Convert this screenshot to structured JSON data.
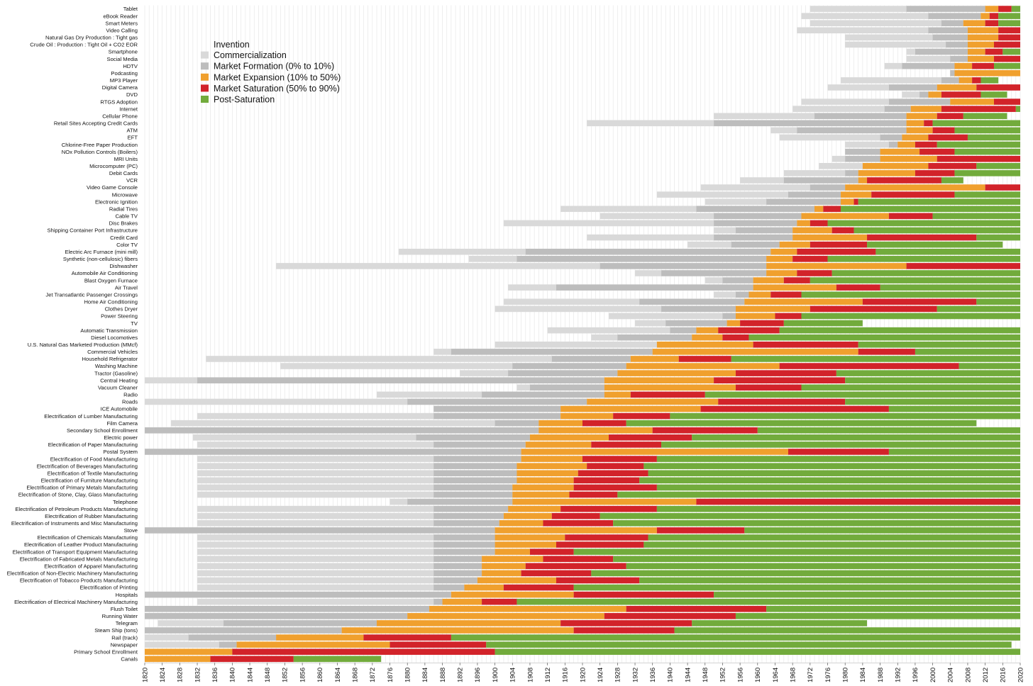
{
  "chart_data": {
    "type": "bar",
    "subtype": "stacked-horizontal-timeline",
    "title": "",
    "xlabel": "",
    "ylabel": "",
    "xlim": [
      1820,
      2020
    ],
    "xticks": [
      1820,
      1824,
      1828,
      1832,
      1836,
      1840,
      1844,
      1848,
      1852,
      1856,
      1860,
      1864,
      1868,
      1872,
      1876,
      1880,
      1884,
      1888,
      1892,
      1896,
      1900,
      1904,
      1908,
      1912,
      1916,
      1920,
      1924,
      1928,
      1932,
      1936,
      1940,
      1944,
      1948,
      1952,
      1956,
      1960,
      1964,
      1968,
      1972,
      1976,
      1980,
      1984,
      1988,
      1992,
      1996,
      2000,
      2004,
      2008,
      2012,
      2016,
      2020
    ],
    "grid": true,
    "legend_position": "top-left",
    "legend_title": "Invention",
    "phases": [
      {
        "key": "commercialization",
        "name": "Commercialization",
        "color": "#d9d9d9"
      },
      {
        "key": "formation",
        "name": "Market Formation (0% to 10%)",
        "color": "#bdbdbd"
      },
      {
        "key": "expansion",
        "name": "Market Expansion (10% to 50%)",
        "color": "#f0a02e"
      },
      {
        "key": "saturation",
        "name": "Market Saturation (50% to 90%)",
        "color": "#d2232a"
      },
      {
        "key": "post",
        "name": "Post-Saturation",
        "color": "#72ab3c"
      }
    ],
    "series_note": "each row: start year of Commercialization, Market Formation, Market Expansion, Market Saturation, Post-Saturation, and end year",
    "rows": [
      {
        "name": "Tablet",
        "years": [
          1972,
          1994,
          2012,
          2015,
          2018,
          2020
        ]
      },
      {
        "name": "eBook Reader",
        "years": [
          1970,
          1999,
          2011,
          2013,
          2015,
          2020
        ]
      },
      {
        "name": "Smart Meters",
        "years": [
          1972,
          2002,
          2007,
          2012,
          2015,
          2020
        ]
      },
      {
        "name": "Video Calling",
        "years": [
          1969,
          1999,
          2008,
          2015,
          null,
          2020
        ]
      },
      {
        "name": "Natural Gas Dry Production : Tight gas",
        "years": [
          1980,
          2000,
          2008,
          2015,
          null,
          2020
        ]
      },
      {
        "name": "Crude Oil : Production : Tight Oil + CO2 EOR",
        "years": [
          1980,
          2003,
          2008,
          2014,
          null,
          2020
        ]
      },
      {
        "name": "Smartphone",
        "years": [
          1994,
          1996,
          2008,
          2012,
          2016,
          2020
        ]
      },
      {
        "name": "Social Media",
        "years": [
          1994,
          2004,
          2008,
          2014,
          2020,
          2020
        ]
      },
      {
        "name": "HDTV",
        "years": [
          1989,
          1993,
          2005,
          2009,
          2014,
          2020
        ]
      },
      {
        "name": "Podcasting",
        "years": [
          2004,
          2004,
          2005,
          2020,
          null,
          2020
        ]
      },
      {
        "name": "MP3 Player",
        "years": [
          1979,
          2002,
          2006,
          2009,
          2011,
          2015
        ]
      },
      {
        "name": "Digital Camera",
        "years": [
          1976,
          1990,
          2001,
          2010,
          null,
          2020
        ]
      },
      {
        "name": "DVD",
        "years": [
          1993,
          1997,
          1999,
          2002,
          2011,
          2017
        ]
      },
      {
        "name": "RTGS Adoption",
        "years": [
          1970,
          1990,
          2004,
          2014,
          null,
          2020
        ]
      },
      {
        "name": "Internet",
        "years": [
          1968,
          1989,
          1995,
          2002,
          2019,
          2020
        ]
      },
      {
        "name": "Cellular Phone",
        "years": [
          1950,
          1973,
          1994,
          2001,
          2007,
          2017
        ]
      },
      {
        "name": "Retail Sites Accepting Credit Cards",
        "years": [
          1921,
          1950,
          1994,
          1998,
          2000,
          2020
        ]
      },
      {
        "name": "ATM",
        "years": [
          1963,
          1969,
          1994,
          2000,
          2005,
          2020
        ]
      },
      {
        "name": "EFT",
        "years": [
          1965,
          1988,
          1993,
          1999,
          2008,
          2020
        ]
      },
      {
        "name": "Chlorine-Free Paper Production",
        "years": [
          1980,
          1990,
          1992,
          1996,
          2001,
          2020
        ]
      },
      {
        "name": "NOx Pollution Controls (Boilers)",
        "years": [
          1980,
          1980,
          1988,
          1997,
          2005,
          2020
        ]
      },
      {
        "name": "MRI Units",
        "years": [
          1977,
          1980,
          1988,
          2001,
          2020,
          2020
        ]
      },
      {
        "name": "Microcomputer (PC)",
        "years": [
          1974,
          1984,
          1984,
          1999,
          2010,
          2020
        ]
      },
      {
        "name": "Debit Cards",
        "years": [
          1966,
          1980,
          1983,
          1996,
          2005,
          2020
        ]
      },
      {
        "name": "VCR",
        "years": [
          1956,
          1966,
          1983,
          1985,
          2002,
          2007
        ]
      },
      {
        "name": "Video Game Console",
        "years": [
          1947,
          1972,
          1980,
          2012,
          2020,
          2020
        ]
      },
      {
        "name": "Microwave",
        "years": [
          1937,
          1967,
          1979,
          1986,
          2005,
          2020
        ]
      },
      {
        "name": "Electronic Ignition",
        "years": [
          1948,
          1962,
          1979,
          1982,
          1983,
          2020
        ]
      },
      {
        "name": "Radial Tires",
        "years": [
          1915,
          1946,
          1973,
          1975,
          1979,
          2020
        ]
      },
      {
        "name": "Cable TV",
        "years": [
          1924,
          1950,
          1970,
          1990,
          2000,
          2020
        ]
      },
      {
        "name": "Disc Brakes",
        "years": [
          1902,
          1950,
          1969,
          1972,
          1976,
          2020
        ]
      },
      {
        "name": "Shipping Container Port Infrastructure",
        "years": [
          1950,
          1955,
          1968,
          1977,
          1982,
          2020
        ]
      },
      {
        "name": "Credit Card",
        "years": [
          1921,
          1950,
          1968,
          1985,
          2010,
          2020
        ]
      },
      {
        "name": "Color TV",
        "years": [
          1944,
          1954,
          1965,
          1972,
          1985,
          2016
        ]
      },
      {
        "name": "Electric Arc Furnace (mini mill)",
        "years": [
          1878,
          1907,
          1963,
          1969,
          1987,
          2020
        ]
      },
      {
        "name": "Synthetic (non-cellulosic) fibers",
        "years": [
          1894,
          1905,
          1962,
          1968,
          1976,
          2020
        ]
      },
      {
        "name": "Dishwasher",
        "years": [
          1850,
          1924,
          1962,
          1994,
          2020,
          2020
        ]
      },
      {
        "name": "Automobile Air Conditioning",
        "years": [
          1932,
          1938,
          1962,
          1969,
          1977,
          2020
        ]
      },
      {
        "name": "Blast Oxygen Furnace",
        "years": [
          1948,
          1952,
          1959,
          1966,
          1972,
          2020
        ]
      },
      {
        "name": "Air Travel",
        "years": [
          1903,
          1914,
          1959,
          1978,
          1988,
          2020
        ]
      },
      {
        "name": "Jet Transatlantic Passenger Crossings",
        "years": [
          1950,
          1955,
          1958,
          1963,
          1970,
          2020
        ]
      },
      {
        "name": "Home Air Conditioning",
        "years": [
          1902,
          1933,
          1957,
          1984,
          2010,
          2020
        ]
      },
      {
        "name": "Clothes Dryer",
        "years": [
          1900,
          1938,
          1955,
          1972,
          2001,
          2020
        ]
      },
      {
        "name": "Power Steering",
        "years": [
          1926,
          1952,
          1955,
          1964,
          1970,
          2020
        ]
      },
      {
        "name": "TV",
        "years": [
          1932,
          1939,
          1953,
          1956,
          1966,
          1984
        ]
      },
      {
        "name": "Automatic Transmission",
        "years": [
          1912,
          1940,
          1946,
          1951,
          1965,
          2020
        ]
      },
      {
        "name": "Diesel Locomotives",
        "years": [
          1922,
          1928,
          1945,
          1952,
          1958,
          2020
        ]
      },
      {
        "name": "U.S. Natural Gas Marketed Production (MMcf)",
        "years": [
          1900,
          1937,
          1937,
          1959,
          1983,
          2020
        ]
      },
      {
        "name": "Commercial Vehicles",
        "years": [
          1886,
          1890,
          1936,
          1983,
          1996,
          2020
        ]
      },
      {
        "name": "Household Refrigerator",
        "years": [
          1834,
          1913,
          1931,
          1942,
          1954,
          2020
        ]
      },
      {
        "name": "Washing Machine",
        "years": [
          1851,
          1904,
          1930,
          1965,
          2006,
          2020
        ]
      },
      {
        "name": "Tractor (Gasoline)",
        "years": [
          1892,
          1903,
          1928,
          1955,
          1978,
          2020
        ]
      },
      {
        "name": "Central Heating",
        "years": [
          1820,
          1832,
          1925,
          1950,
          1980,
          2020
        ]
      },
      {
        "name": "Vacuum Cleaner",
        "years": [
          1905,
          1908,
          1925,
          1955,
          1970,
          2020
        ]
      },
      {
        "name": "Radio",
        "years": [
          1873,
          1897,
          1925,
          1931,
          1948,
          2020
        ]
      },
      {
        "name": "Roads",
        "years": [
          1820,
          1880,
          1921,
          1951,
          1980,
          2020
        ]
      },
      {
        "name": "ICE Automobile",
        "years": [
          1886,
          1886,
          1915,
          1947,
          1990,
          2020
        ]
      },
      {
        "name": "Electrification of Lumber Manufacturing",
        "years": [
          1832,
          1886,
          1915,
          1927,
          1940,
          2020
        ]
      },
      {
        "name": "Film Camera",
        "years": [
          1826,
          1900,
          1910,
          1920,
          1930,
          2010
        ]
      },
      {
        "name": "Secondary School Enrollment",
        "years": [
          1820,
          1820,
          1910,
          1936,
          1960,
          2020
        ]
      },
      {
        "name": "Electric power",
        "years": [
          1831,
          1882,
          1908,
          1926,
          1945,
          2020
        ]
      },
      {
        "name": "Electrification of Paper Manufacturing",
        "years": [
          1832,
          1886,
          1907,
          1922,
          1938,
          2020
        ]
      },
      {
        "name": "Postal System",
        "years": [
          1820,
          1820,
          1906,
          1967,
          1990,
          2020
        ]
      },
      {
        "name": "Electrification of Food Manufacturing",
        "years": [
          1832,
          1886,
          1906,
          1920,
          1937,
          2020
        ]
      },
      {
        "name": "Electrification of Beverages Manufacturing",
        "years": [
          1832,
          1886,
          1905,
          1921,
          1934,
          2020
        ]
      },
      {
        "name": "Electrification of Textile Manufacturing",
        "years": [
          1832,
          1886,
          1905,
          1919,
          1935,
          2020
        ]
      },
      {
        "name": "Electrification of Furniture Manufacturing",
        "years": [
          1832,
          1886,
          1905,
          1918,
          1933,
          2020
        ]
      },
      {
        "name": "Electrification of Primary Metals Manufacturing",
        "years": [
          1832,
          1886,
          1904,
          1918,
          1937,
          2020
        ]
      },
      {
        "name": "Electrification of Stone, Clay, Glass Manufacturing",
        "years": [
          1832,
          1886,
          1904,
          1917,
          1928,
          2020
        ]
      },
      {
        "name": "Telephone",
        "years": [
          1876,
          1880,
          1904,
          1946,
          null,
          2020
        ]
      },
      {
        "name": "Electrification of Petroleum Products Manufacturing",
        "years": [
          1832,
          1886,
          1903,
          1915,
          1937,
          2020
        ]
      },
      {
        "name": "Electrification of Rubber Manufacturing",
        "years": [
          1832,
          1886,
          1902,
          1913,
          1924,
          2020
        ]
      },
      {
        "name": "Electrification of Instruments and Misc Manufacturing",
        "years": [
          1832,
          1886,
          1901,
          1911,
          1927,
          2020
        ]
      },
      {
        "name": "Stove",
        "years": [
          1820,
          1820,
          1900,
          1937,
          1957,
          2020
        ]
      },
      {
        "name": "Electrification of Chemicals Manufacturing",
        "years": [
          1832,
          1886,
          1900,
          1916,
          1935,
          2020
        ]
      },
      {
        "name": "Electrification of Leather Product Manufacturing",
        "years": [
          1832,
          1886,
          1900,
          1914,
          1934,
          2020
        ]
      },
      {
        "name": "Electrification of Transport Equipment Manufacturing",
        "years": [
          1832,
          1886,
          1900,
          1908,
          1918,
          2020
        ]
      },
      {
        "name": "Electrification of Fabricated Metals Manufacturing",
        "years": [
          1832,
          1886,
          1897,
          1911,
          1927,
          2020
        ]
      },
      {
        "name": "Electrification of Apparel Manufacturing",
        "years": [
          1832,
          1886,
          1897,
          1907,
          1930,
          2020
        ]
      },
      {
        "name": "Electrification of Non-Electric Machinery Manufacturing",
        "years": [
          1832,
          1886,
          1897,
          1906,
          1922,
          2020
        ]
      },
      {
        "name": "Electrification of Tobacco Products Manufacturing",
        "years": [
          1832,
          1886,
          1896,
          1914,
          1933,
          2020
        ]
      },
      {
        "name": "Electrification of Printing",
        "years": [
          1832,
          1886,
          1893,
          1902,
          1918,
          2020
        ]
      },
      {
        "name": "Hospitals",
        "years": [
          1820,
          1820,
          1890,
          1918,
          1950,
          2020
        ]
      },
      {
        "name": "Electrification of Electrical Machinery Manufacturing",
        "years": [
          1832,
          1886,
          1888,
          1897,
          1905,
          2020
        ]
      },
      {
        "name": "Flush Toilet",
        "years": [
          1820,
          1820,
          1885,
          1930,
          1962,
          2020
        ]
      },
      {
        "name": "Running Water",
        "years": [
          1820,
          1820,
          1880,
          1925,
          1955,
          2020
        ]
      },
      {
        "name": "Telegram",
        "years": [
          1823,
          1838,
          1873,
          1915,
          1945,
          1985
        ]
      },
      {
        "name": "Steam Ship (tons)",
        "years": [
          1820,
          1820,
          1865,
          1918,
          1941,
          2020
        ]
      },
      {
        "name": "Rail (track)",
        "years": [
          1820,
          1830,
          1850,
          1870,
          1890,
          2020
        ]
      },
      {
        "name": "Newspaper",
        "years": [
          1820,
          1837,
          1841,
          1876,
          1898,
          2018
        ]
      },
      {
        "name": "Primary School Enrollment",
        "years": [
          1820,
          1820,
          1820,
          1840,
          1900,
          2020
        ]
      },
      {
        "name": "Canals",
        "years": [
          1820,
          1820,
          1820,
          1835,
          1854,
          1874
        ]
      }
    ]
  }
}
